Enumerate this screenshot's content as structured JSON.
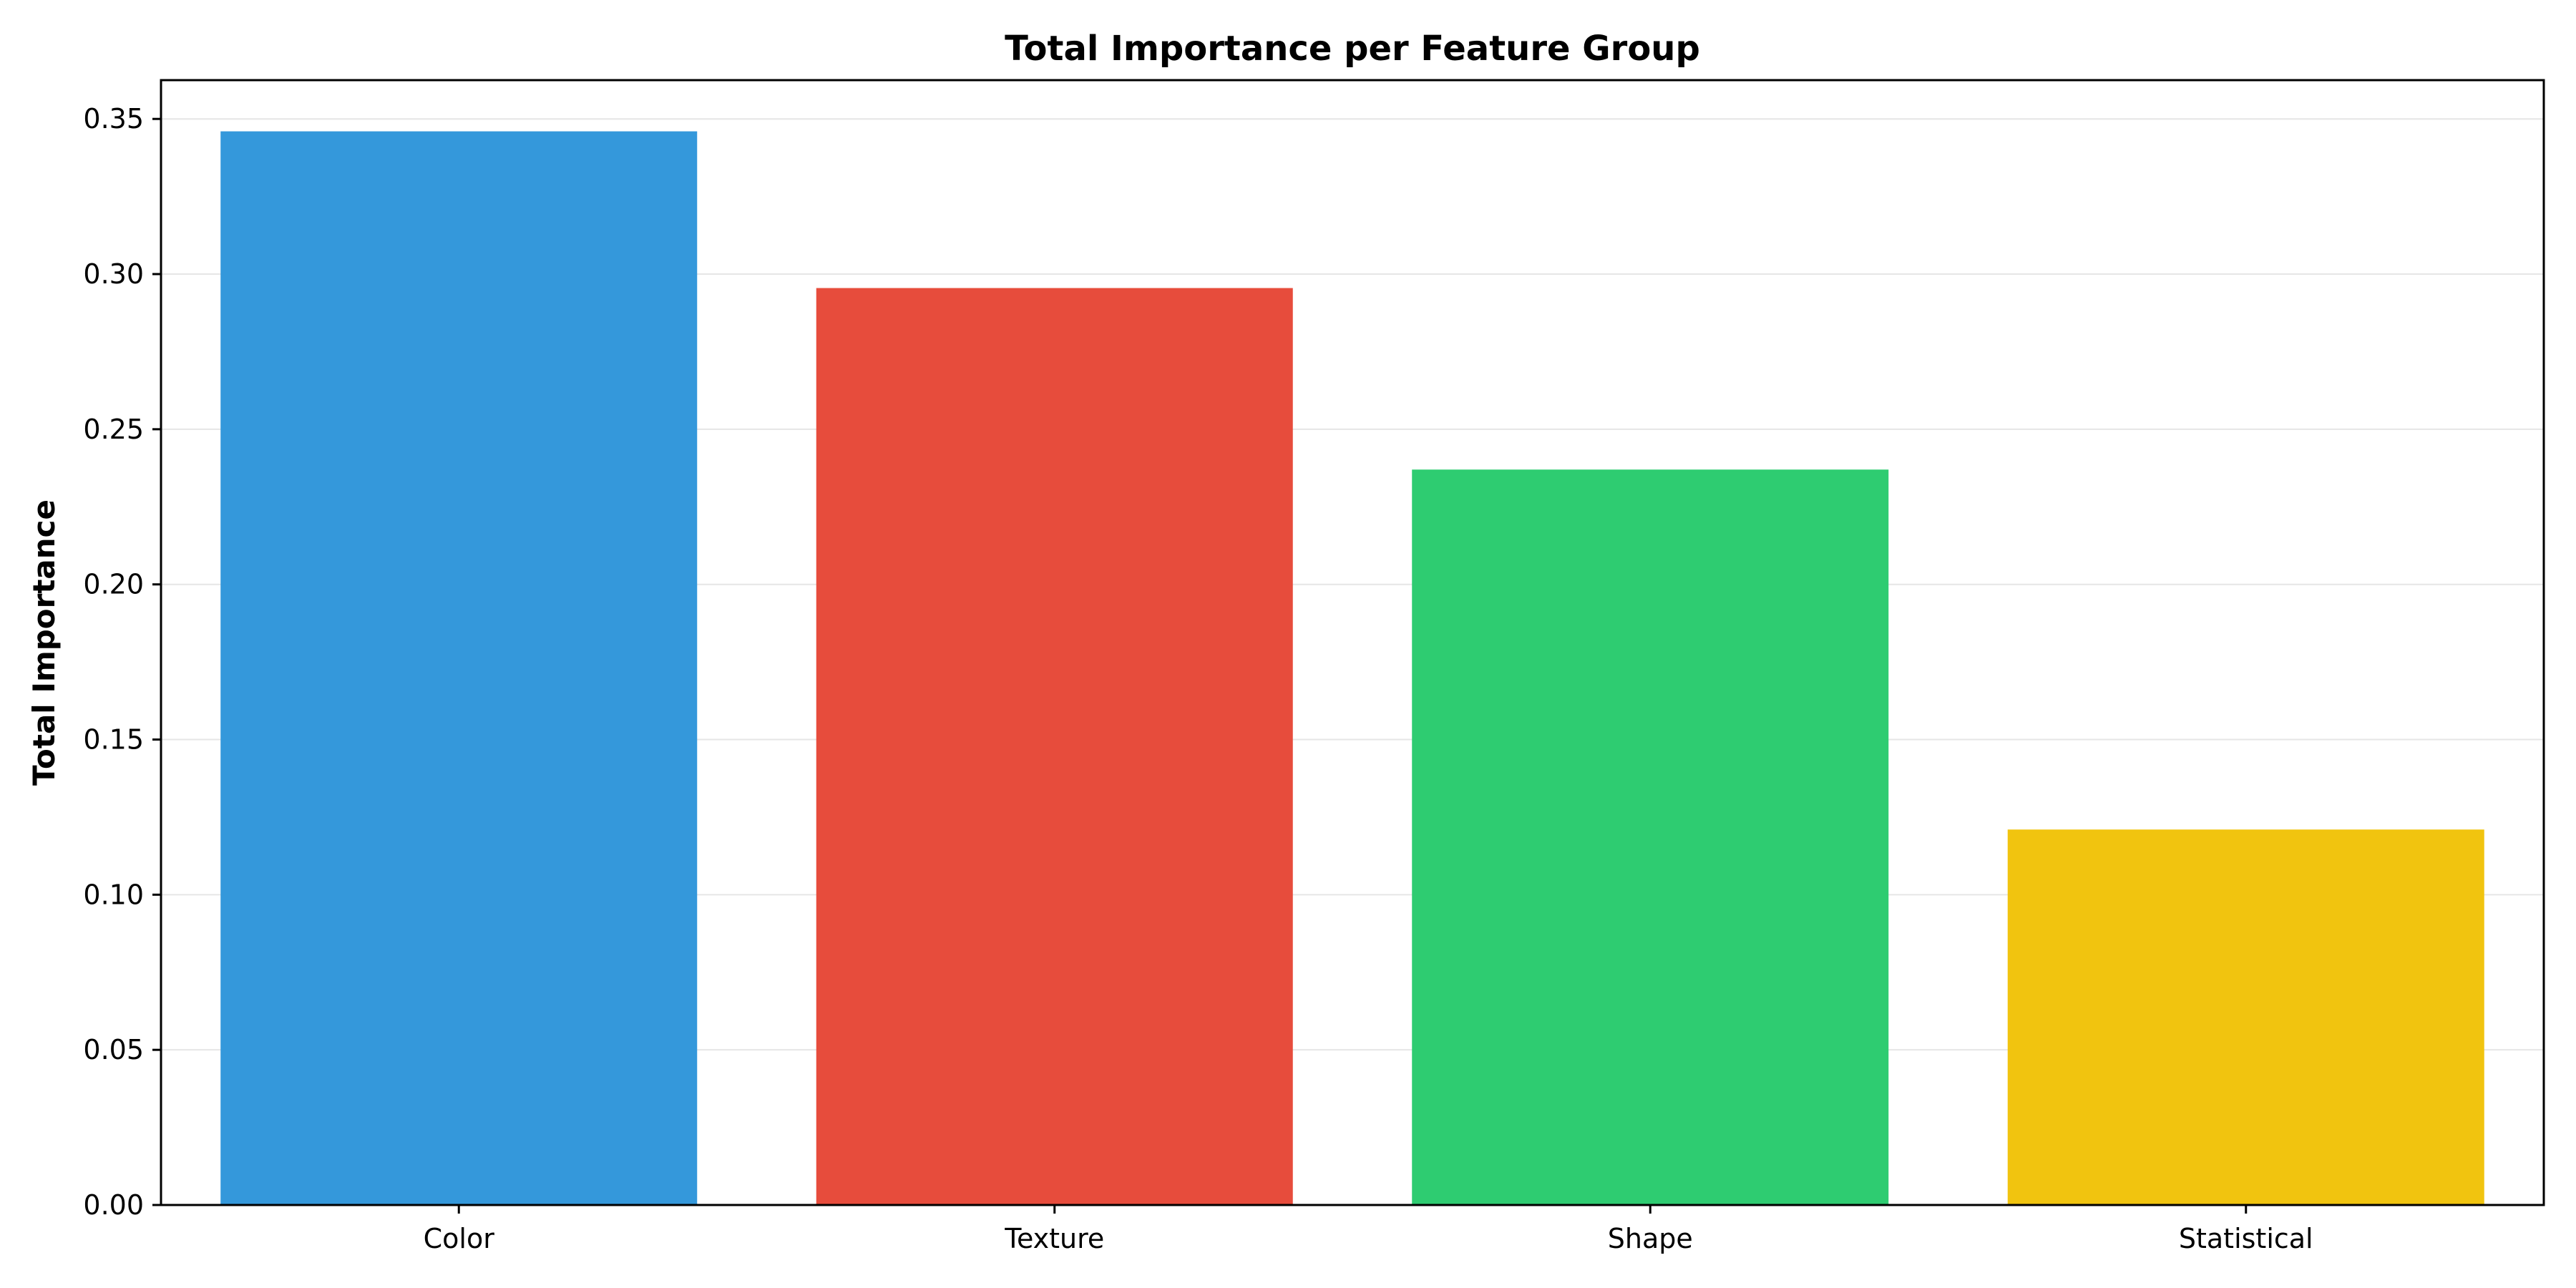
{
  "chart_data": {
    "type": "bar",
    "title": "Total Importance per Feature Group",
    "xlabel": "",
    "ylabel": "Total Importance",
    "categories": [
      "Color",
      "Texture",
      "Shape",
      "Statistical"
    ],
    "values": [
      0.346,
      0.2955,
      0.237,
      0.121
    ],
    "colors": [
      "#3498db",
      "#e74c3c",
      "#2ecc71",
      "#f1c40f"
    ],
    "ylim": [
      0,
      0.3625
    ],
    "yticks": [
      "0.00",
      "0.05",
      "0.10",
      "0.15",
      "0.20",
      "0.25",
      "0.30",
      "0.35"
    ],
    "grid": "y-axis horizontal lines",
    "legend": "none"
  }
}
